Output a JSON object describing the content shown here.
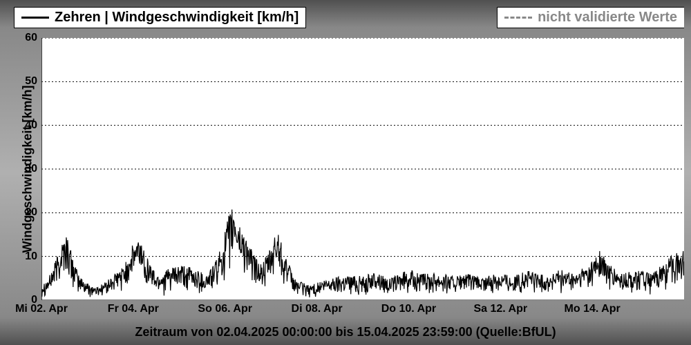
{
  "legend": {
    "main_label": "Zehren | Windgeschwindigkeit [km/h]",
    "aux_label": "nicht validierte Werte"
  },
  "chart": {
    "type": "line",
    "ylabel": "Windgeschwindigkeit [km/h]",
    "caption": "Zeitraum von 02.04.2025 00:00:00 bis 15.04.2025 23:59:00     (Quelle:BfUL)",
    "ylim": [
      0,
      60
    ],
    "ytick_step": 10,
    "yticks": [
      0,
      10,
      20,
      30,
      40,
      50,
      60
    ],
    "xlim": [
      0,
      14
    ],
    "xticks": [
      {
        "pos": 0,
        "label": "Mi 02. Apr"
      },
      {
        "pos": 2,
        "label": "Fr 04. Apr"
      },
      {
        "pos": 4,
        "label": "So 06. Apr"
      },
      {
        "pos": 6,
        "label": "Di 08. Apr"
      },
      {
        "pos": 8,
        "label": "Do 10. Apr"
      },
      {
        "pos": 10,
        "label": "Sa 12. Apr"
      },
      {
        "pos": 12,
        "label": "Mo 14. Apr"
      }
    ],
    "grid_color": "#000000",
    "grid_dash": "2,3",
    "background_color": "#ffffff",
    "line_color": "#000000",
    "line_width": 1.2,
    "title_fontsize": 20,
    "label_fontsize": 18,
    "tick_fontsize": 16,
    "series_envelope": [
      {
        "x": 0.0,
        "lo": 0.5,
        "hi": 4.0
      },
      {
        "x": 0.15,
        "lo": 1.0,
        "hi": 5.0
      },
      {
        "x": 0.3,
        "lo": 2.0,
        "hi": 9.0
      },
      {
        "x": 0.45,
        "lo": 4.0,
        "hi": 14.0
      },
      {
        "x": 0.55,
        "lo": 5.0,
        "hi": 15.5
      },
      {
        "x": 0.65,
        "lo": 3.0,
        "hi": 11.0
      },
      {
        "x": 0.8,
        "lo": 1.0,
        "hi": 6.0
      },
      {
        "x": 1.0,
        "lo": 0.5,
        "hi": 4.0
      },
      {
        "x": 1.2,
        "lo": 0.5,
        "hi": 3.0
      },
      {
        "x": 1.5,
        "lo": 1.0,
        "hi": 5.0
      },
      {
        "x": 1.8,
        "lo": 2.0,
        "hi": 8.0
      },
      {
        "x": 2.0,
        "lo": 4.0,
        "hi": 13.0
      },
      {
        "x": 2.15,
        "lo": 5.0,
        "hi": 14.5
      },
      {
        "x": 2.3,
        "lo": 3.0,
        "hi": 10.0
      },
      {
        "x": 2.5,
        "lo": 1.0,
        "hi": 6.0
      },
      {
        "x": 2.7,
        "lo": 1.0,
        "hi": 7.0
      },
      {
        "x": 3.0,
        "lo": 1.5,
        "hi": 8.0
      },
      {
        "x": 3.3,
        "lo": 1.0,
        "hi": 7.5
      },
      {
        "x": 3.6,
        "lo": 1.0,
        "hi": 6.0
      },
      {
        "x": 3.85,
        "lo": 2.0,
        "hi": 10.0
      },
      {
        "x": 4.0,
        "lo": 4.0,
        "hi": 16.0
      },
      {
        "x": 4.1,
        "lo": 6.0,
        "hi": 20.0
      },
      {
        "x": 4.2,
        "lo": 7.0,
        "hi": 22.0
      },
      {
        "x": 4.3,
        "lo": 6.0,
        "hi": 18.0
      },
      {
        "x": 4.45,
        "lo": 5.0,
        "hi": 15.0
      },
      {
        "x": 4.6,
        "lo": 3.0,
        "hi": 11.0
      },
      {
        "x": 4.8,
        "lo": 2.0,
        "hi": 8.0
      },
      {
        "x": 5.0,
        "lo": 3.0,
        "hi": 12.0
      },
      {
        "x": 5.15,
        "lo": 5.0,
        "hi": 17.0
      },
      {
        "x": 5.3,
        "lo": 3.0,
        "hi": 11.0
      },
      {
        "x": 5.5,
        "lo": 1.0,
        "hi": 5.0
      },
      {
        "x": 5.8,
        "lo": 0.5,
        "hi": 3.5
      },
      {
        "x": 6.0,
        "lo": 0.5,
        "hi": 4.0
      },
      {
        "x": 6.3,
        "lo": 1.0,
        "hi": 5.0
      },
      {
        "x": 6.6,
        "lo": 1.0,
        "hi": 6.0
      },
      {
        "x": 7.0,
        "lo": 1.0,
        "hi": 5.5
      },
      {
        "x": 7.3,
        "lo": 1.5,
        "hi": 6.5
      },
      {
        "x": 7.6,
        "lo": 1.0,
        "hi": 5.0
      },
      {
        "x": 8.0,
        "lo": 1.5,
        "hi": 7.0
      },
      {
        "x": 8.3,
        "lo": 1.0,
        "hi": 6.0
      },
      {
        "x": 8.6,
        "lo": 1.5,
        "hi": 6.5
      },
      {
        "x": 9.0,
        "lo": 1.0,
        "hi": 5.5
      },
      {
        "x": 9.3,
        "lo": 1.5,
        "hi": 6.0
      },
      {
        "x": 9.6,
        "lo": 1.0,
        "hi": 5.0
      },
      {
        "x": 10.0,
        "lo": 1.5,
        "hi": 6.5
      },
      {
        "x": 10.3,
        "lo": 1.0,
        "hi": 5.5
      },
      {
        "x": 10.6,
        "lo": 1.5,
        "hi": 7.0
      },
      {
        "x": 11.0,
        "lo": 1.0,
        "hi": 5.5
      },
      {
        "x": 11.3,
        "lo": 1.5,
        "hi": 7.0
      },
      {
        "x": 11.6,
        "lo": 1.0,
        "hi": 6.0
      },
      {
        "x": 12.0,
        "lo": 2.0,
        "hi": 9.0
      },
      {
        "x": 12.15,
        "lo": 3.0,
        "hi": 12.0
      },
      {
        "x": 12.3,
        "lo": 2.0,
        "hi": 9.0
      },
      {
        "x": 12.6,
        "lo": 1.0,
        "hi": 6.0
      },
      {
        "x": 13.0,
        "lo": 1.5,
        "hi": 7.0
      },
      {
        "x": 13.3,
        "lo": 1.0,
        "hi": 6.0
      },
      {
        "x": 13.6,
        "lo": 2.0,
        "hi": 9.0
      },
      {
        "x": 13.8,
        "lo": 3.0,
        "hi": 11.0
      },
      {
        "x": 13.95,
        "lo": 3.0,
        "hi": 12.0
      }
    ]
  }
}
